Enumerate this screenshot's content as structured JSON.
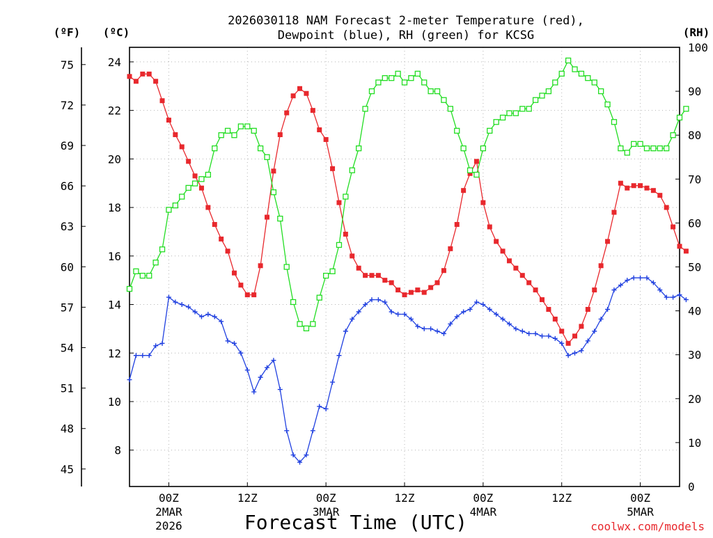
{
  "chart_data": {
    "type": "line",
    "title": "2026030118 NAM Forecast 2-meter Temperature (red),",
    "title2": "Dewpoint (blue), RH (green) for KCSG",
    "xlabel": "Forecast Time (UTC)",
    "credit": "coolwx.com/models",
    "units": {
      "fahrenheit": "(ºF)",
      "celsius": "(ºC)",
      "rh": "(RH)"
    },
    "x_unit": "hours since 2026-03-01 18Z",
    "x_range": [
      0,
      84
    ],
    "celsius_range": [
      6.5,
      24.6
    ],
    "rh_range": [
      0,
      100
    ],
    "celsius_ticks": [
      8,
      10,
      12,
      14,
      16,
      18,
      20,
      22,
      24
    ],
    "fahrenheit_ticks": [
      45,
      48,
      51,
      54,
      57,
      60,
      63,
      66,
      69,
      72,
      75
    ],
    "rh_ticks": [
      0,
      10,
      20,
      30,
      40,
      50,
      60,
      70,
      80,
      90,
      100
    ],
    "x_ticks": [
      {
        "x": 6,
        "label": "00Z",
        "date": "2MAR",
        "year": "2026"
      },
      {
        "x": 18,
        "label": "12Z",
        "date": "",
        "year": ""
      },
      {
        "x": 30,
        "label": "00Z",
        "date": "3MAR",
        "year": ""
      },
      {
        "x": 42,
        "label": "12Z",
        "date": "",
        "year": ""
      },
      {
        "x": 54,
        "label": "00Z",
        "date": "4MAR",
        "year": ""
      },
      {
        "x": 66,
        "label": "12Z",
        "date": "",
        "year": ""
      },
      {
        "x": 78,
        "label": "00Z",
        "date": "5MAR",
        "year": ""
      }
    ],
    "series": [
      {
        "name": "2-meter Temperature",
        "unit": "C",
        "color": "#e8282d",
        "marker": "square",
        "values": [
          23.4,
          23.2,
          23.5,
          23.5,
          23.2,
          22.4,
          21.6,
          21.0,
          20.5,
          19.9,
          19.3,
          18.8,
          18.0,
          17.3,
          16.7,
          16.2,
          15.3,
          14.8,
          14.4,
          14.4,
          15.6,
          17.6,
          19.5,
          21.0,
          21.9,
          22.6,
          22.9,
          22.7,
          22.0,
          21.2,
          20.8,
          19.6,
          18.2,
          16.9,
          16.0,
          15.5,
          15.2,
          15.2,
          15.2,
          15.0,
          14.9,
          14.6,
          14.4,
          14.5,
          14.6,
          14.5,
          14.7,
          14.9,
          15.4,
          16.3,
          17.3,
          18.7,
          19.4,
          19.9,
          18.2,
          17.2,
          16.6,
          16.2,
          15.8,
          15.5,
          15.2,
          14.9,
          14.6,
          14.2,
          13.8,
          13.4,
          12.9,
          12.4,
          12.7,
          13.1,
          13.8,
          14.6,
          15.6,
          16.6,
          17.8,
          19.0,
          18.8,
          18.9,
          18.9,
          18.8,
          18.7,
          18.5,
          18.0,
          17.2,
          16.4,
          16.2
        ]
      },
      {
        "name": "Dewpoint",
        "unit": "C",
        "color": "#2040e0",
        "marker": "plus",
        "values": [
          10.9,
          11.9,
          11.9,
          11.9,
          12.3,
          12.4,
          14.3,
          14.1,
          14.0,
          13.9,
          13.7,
          13.5,
          13.6,
          13.5,
          13.3,
          12.5,
          12.4,
          12.0,
          11.3,
          10.4,
          11.0,
          11.4,
          11.7,
          10.5,
          8.8,
          7.8,
          7.5,
          7.8,
          8.8,
          9.8,
          9.7,
          10.8,
          11.9,
          12.9,
          13.4,
          13.7,
          14.0,
          14.2,
          14.2,
          14.1,
          13.7,
          13.6,
          13.6,
          13.4,
          13.1,
          13.0,
          13.0,
          12.9,
          12.8,
          13.2,
          13.5,
          13.7,
          13.8,
          14.1,
          14.0,
          13.8,
          13.6,
          13.4,
          13.2,
          13.0,
          12.9,
          12.8,
          12.8,
          12.7,
          12.7,
          12.6,
          12.4,
          11.9,
          12.0,
          12.1,
          12.5,
          12.9,
          13.4,
          13.8,
          14.6,
          14.8,
          15.0,
          15.1,
          15.1,
          15.1,
          14.9,
          14.6,
          14.3,
          14.3,
          14.4,
          14.2
        ]
      },
      {
        "name": "RH",
        "unit": "%",
        "color": "#22dd22",
        "marker": "open-square",
        "values": [
          45,
          49,
          48,
          48,
          51,
          54,
          63,
          64,
          66,
          68,
          69,
          70,
          71,
          77,
          80,
          81,
          80,
          82,
          82,
          81,
          77,
          75,
          67,
          61,
          50,
          42,
          37,
          36,
          37,
          43,
          48,
          49,
          55,
          66,
          72,
          77,
          86,
          90,
          92,
          93,
          93,
          94,
          92,
          93,
          94,
          92,
          90,
          90,
          88,
          86,
          81,
          77,
          72,
          71,
          77,
          81,
          83,
          84,
          85,
          85,
          86,
          86,
          88,
          89,
          90,
          92,
          94,
          97,
          95,
          94,
          93,
          92,
          90,
          87,
          83,
          77,
          76,
          78,
          78,
          77,
          77,
          77,
          77,
          80,
          84,
          86
        ]
      }
    ]
  }
}
